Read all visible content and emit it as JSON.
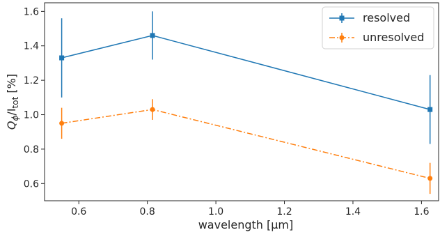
{
  "chart_data": {
    "type": "line",
    "title": "",
    "xlabel": "wavelength [μm]",
    "ylabel": {
      "main": "Q",
      "main_sub": "ϕ",
      "div": "/I",
      "div_sub": "tot",
      "unit": " [%]"
    },
    "xlim": [
      0.5,
      1.65
    ],
    "ylim": [
      0.5,
      1.65
    ],
    "xticks": [
      "0.6",
      "0.8",
      "1.0",
      "1.2",
      "1.4",
      "1.6"
    ],
    "yticks": [
      "0.6",
      "0.8",
      "1.0",
      "1.2",
      "1.4",
      "1.6"
    ],
    "grid": false,
    "legend_position": "top-right",
    "series": [
      {
        "name": "resolved",
        "color": "#1f77b4",
        "marker": "square",
        "linestyle": "solid",
        "x": [
          0.55,
          0.815,
          1.625
        ],
        "y": [
          1.33,
          1.46,
          1.03
        ],
        "yerr": [
          0.23,
          0.14,
          0.2
        ]
      },
      {
        "name": "unresolved",
        "color": "#ff7f0e",
        "marker": "circle",
        "linestyle": "dashdot",
        "x": [
          0.55,
          0.815,
          1.625
        ],
        "y": [
          0.95,
          1.03,
          0.63
        ],
        "yerr": [
          0.09,
          0.06,
          0.09
        ]
      }
    ]
  }
}
